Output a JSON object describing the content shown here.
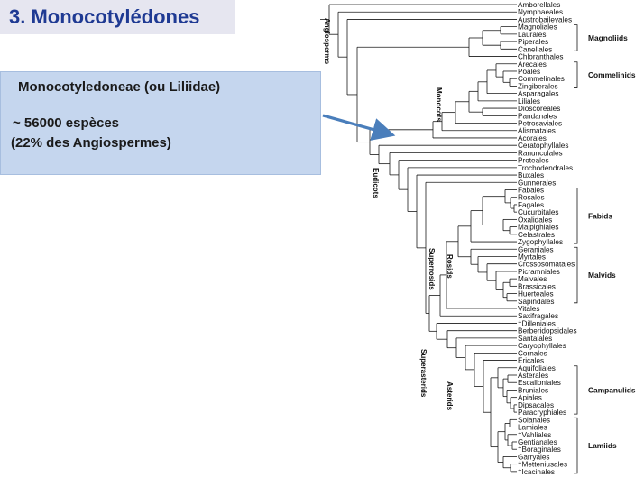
{
  "slide": {
    "title": "3. Monocotylédones",
    "info": {
      "line1": "Monocotyledoneae (ou Liliidae)",
      "line2": "~ 56000 espèces",
      "line3": "(22% des Angiospermes)"
    }
  },
  "tree": {
    "taxa": [
      "Amborellales",
      "Nymphaeales",
      "Austrobaileyales",
      "Magnoliales",
      "Laurales",
      "Piperales",
      "Canellales",
      "Chloranthales",
      "Arecales",
      "Poales",
      "Commelinales",
      "Zingiberales",
      "Asparagales",
      "Liliales",
      "Dioscoreales",
      "Pandanales",
      "Petrosaviales",
      "Alismatales",
      "Acorales",
      "Ceratophyllales",
      "Ranunculales",
      "Proteales",
      "Trochodendrales",
      "Buxales",
      "Gunnerales",
      "Fabales",
      "Rosales",
      "Fagales",
      "Cucurbitales",
      "Oxalidales",
      "Malpighiales",
      "Celastrales",
      "Zygophyllales",
      "Geraniales",
      "Myrtales",
      "Crossosomatales",
      "Picramniales",
      "Malvales",
      "Brassicales",
      "Huerteales",
      "Sapindales",
      "Vitales",
      "Saxifragales",
      "†Dilleniales",
      "Berberidopsidales",
      "Santalales",
      "Caryophyllales",
      "Cornales",
      "Ericales",
      "Aquifoliales",
      "Asterales",
      "Escalloniales",
      "Bruniales",
      "Apiales",
      "Dipsacales",
      "Paracryphiales",
      "Solanales",
      "Lamiales",
      "†Vahliales",
      "Gentianales",
      "†Boraginales",
      "Garryales",
      "†Metteniusales",
      "†Icacinales"
    ],
    "groups": {
      "magnoliids": "Magnoliids",
      "commelinids": "Commelinids",
      "fabids": "Fabids",
      "malvids": "Malvids",
      "campanulids": "Campanulids",
      "lamiids": "Lamiids"
    },
    "clades": {
      "angiosperms": "Angiosperms",
      "monocots": "Monocots",
      "eudicots": "Eudicots",
      "superrosids": "Superrosids",
      "rosids": "Rosids",
      "superasterids": "Superasterids",
      "asterids": "Asterids"
    }
  },
  "colors": {
    "title": "#1f3a93",
    "title_bg": "#e6e6f0",
    "info_bg": "#c5d6ee",
    "arrow": "#4a7ebb",
    "line": "#1a1a1a"
  }
}
